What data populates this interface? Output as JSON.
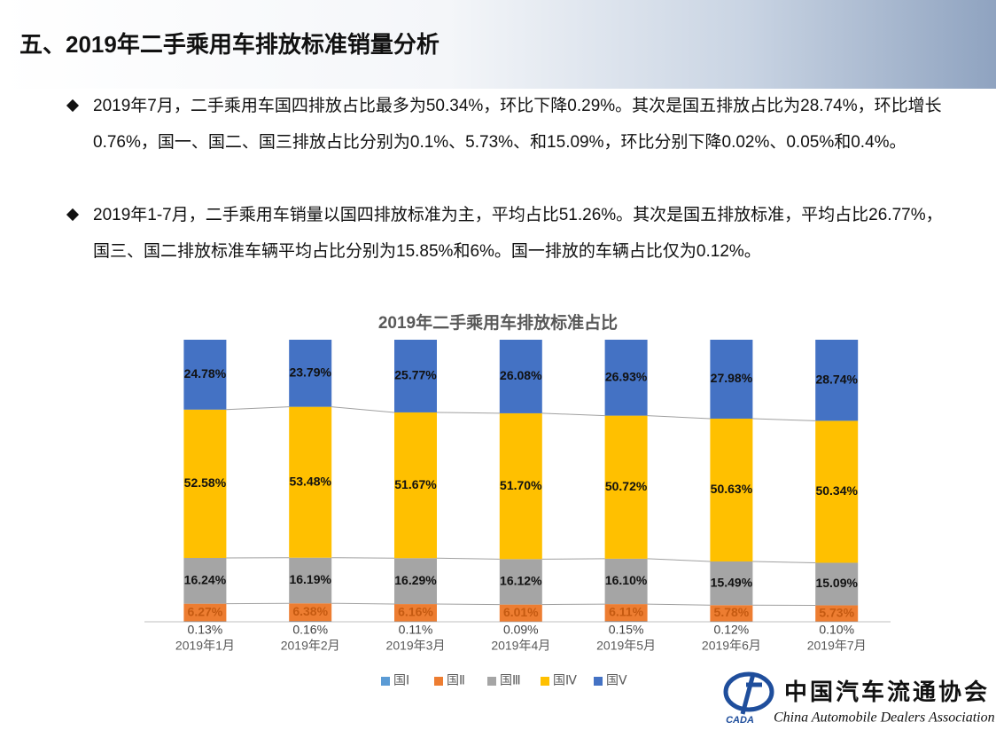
{
  "header": {
    "title": "五、2019年二手乘用车排放标准销量分析"
  },
  "bullets": [
    "2019年7月，二手乘用车国四排放占比最多为50.34%，环比下降0.29%。其次是国五排放占比为28.74%，环比增长0.76%，国一、国二、国三排放占比分别为0.1%、5.73%、和15.09%，环比分别下降0.02%、0.05%和0.4%。",
    "2019年1-7月，二手乘用车销量以国四排放标准为主，平均占比51.26%。其次是国五排放标准，平均占比26.77%，国三、国二排放标准车辆平均占比分别为15.85%和6%。国一排放的车辆占比仅为0.12%。"
  ],
  "chart_data": {
    "type": "stacked_bar",
    "title": "2019年二手乘用车排放标准占比",
    "categories": [
      "2019年1月",
      "2019年2月",
      "2019年3月",
      "2019年4月",
      "2019年5月",
      "2019年6月",
      "2019年7月"
    ],
    "ylim": [
      0,
      100
    ],
    "series": [
      {
        "name": "国Ⅰ",
        "color": "#5b9bd5",
        "values": [
          0.13,
          0.16,
          0.11,
          0.09,
          0.15,
          0.12,
          0.1
        ],
        "value_labels": [
          "0.13%",
          "0.16%",
          "0.11%",
          "0.09%",
          "0.15%",
          "0.12%",
          "0.10%"
        ]
      },
      {
        "name": "国Ⅱ",
        "color": "#ed7d31",
        "values": [
          6.27,
          6.38,
          6.16,
          6.01,
          6.11,
          5.78,
          5.73
        ],
        "value_labels": [
          "6.27%",
          "6.38%",
          "6.16%",
          "6.01%",
          "6.11%",
          "5.78%",
          "5.73%"
        ]
      },
      {
        "name": "国Ⅲ",
        "color": "#a5a5a5",
        "values": [
          16.24,
          16.19,
          16.29,
          16.12,
          16.1,
          15.49,
          15.09
        ],
        "value_labels": [
          "16.24%",
          "16.19%",
          "16.29%",
          "16.12%",
          "16.10%",
          "15.49%",
          "15.09%"
        ]
      },
      {
        "name": "国Ⅳ",
        "color": "#ffc000",
        "values": [
          52.58,
          53.48,
          51.67,
          51.7,
          50.72,
          50.63,
          50.34
        ],
        "value_labels": [
          "52.58%",
          "53.48%",
          "51.67%",
          "51.70%",
          "50.72%",
          "50.63%",
          "50.34%"
        ]
      },
      {
        "name": "国Ⅴ",
        "color": "#4472c4",
        "values": [
          24.78,
          23.79,
          25.77,
          26.08,
          26.93,
          27.98,
          28.74
        ],
        "value_labels": [
          "24.78%",
          "23.79%",
          "25.77%",
          "26.08%",
          "26.93%",
          "27.98%",
          "28.74%"
        ]
      }
    ]
  },
  "logo": {
    "name": "中国汽车流通协会",
    "english": "China Automobile Dealers Association",
    "abbr": "CADA"
  }
}
